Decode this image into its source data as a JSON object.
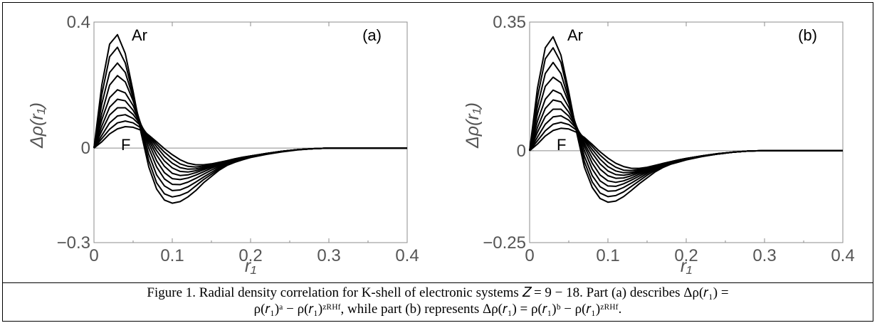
{
  "caption": {
    "line1": "Figure 1. Radial density correlation for K-shell of electronic systems 𝑍 = 9 − 18. Part (a) describes Δρ(𝑟₁) =",
    "line2": "ρ(𝑟₁)ᵃ − ρ(𝑟₁)ᶻᴿᴴᶠ, while part (b) represents Δρ(𝑟₁) = ρ(𝑟₁)ᵇ − ρ(𝑟₁)ᶻᴿᴴᶠ."
  },
  "chart_data": [
    {
      "type": "line",
      "panel_label": "(a)",
      "xlabel": "r₁",
      "ylabel": "Δρ(r₁)",
      "xlim": [
        0,
        0.4
      ],
      "ylim": [
        -0.3,
        0.4
      ],
      "xticks": [
        "0",
        "0.1",
        "0.2",
        "0.3",
        "0.4"
      ],
      "yticks": [
        "−0.3",
        "0",
        "0.4"
      ],
      "grid": false,
      "annotations": [
        "Ar",
        "F"
      ],
      "x": [
        0,
        0.01,
        0.02,
        0.03,
        0.04,
        0.05,
        0.06,
        0.07,
        0.08,
        0.09,
        0.1,
        0.11,
        0.12,
        0.13,
        0.14,
        0.15,
        0.16,
        0.17,
        0.18,
        0.19,
        0.2,
        0.22,
        0.24,
        0.26,
        0.28,
        0.3,
        0.32,
        0.34,
        0.36,
        0.38,
        0.4
      ],
      "series": [
        {
          "values": [
            0,
            0.2,
            0.33,
            0.36,
            0.3,
            0.18,
            0.05,
            -0.06,
            -0.13,
            -0.165,
            -0.175,
            -0.17,
            -0.155,
            -0.135,
            -0.11,
            -0.09,
            -0.07,
            -0.055,
            -0.045,
            -0.037,
            -0.03,
            -0.02,
            -0.012,
            -0.006,
            -0.002,
            0,
            0,
            0,
            0,
            0,
            0
          ]
        },
        {
          "values": [
            0,
            0.17,
            0.29,
            0.32,
            0.27,
            0.17,
            0.06,
            -0.04,
            -0.11,
            -0.145,
            -0.155,
            -0.15,
            -0.14,
            -0.12,
            -0.1,
            -0.083,
            -0.066,
            -0.053,
            -0.043,
            -0.035,
            -0.029,
            -0.019,
            -0.011,
            -0.005,
            -0.002,
            0,
            0,
            0,
            0,
            0,
            0
          ]
        },
        {
          "values": [
            0,
            0.14,
            0.24,
            0.27,
            0.24,
            0.16,
            0.07,
            -0.02,
            -0.085,
            -0.12,
            -0.135,
            -0.133,
            -0.123,
            -0.108,
            -0.092,
            -0.077,
            -0.062,
            -0.05,
            -0.041,
            -0.034,
            -0.028,
            -0.018,
            -0.011,
            -0.005,
            -0.002,
            0,
            0,
            0,
            0,
            0,
            0
          ]
        },
        {
          "values": [
            0,
            0.11,
            0.2,
            0.23,
            0.21,
            0.15,
            0.075,
            0,
            -0.06,
            -0.098,
            -0.115,
            -0.116,
            -0.108,
            -0.096,
            -0.083,
            -0.07,
            -0.058,
            -0.047,
            -0.039,
            -0.033,
            -0.027,
            -0.018,
            -0.01,
            -0.005,
            -0.002,
            0,
            0,
            0,
            0,
            0,
            0
          ]
        },
        {
          "values": [
            0,
            0.09,
            0.16,
            0.185,
            0.175,
            0.135,
            0.075,
            0.015,
            -0.04,
            -0.078,
            -0.097,
            -0.1,
            -0.095,
            -0.086,
            -0.075,
            -0.064,
            -0.054,
            -0.045,
            -0.037,
            -0.032,
            -0.027,
            -0.017,
            -0.01,
            -0.005,
            -0.002,
            0,
            0,
            0,
            0,
            0,
            0
          ]
        },
        {
          "values": [
            0,
            0.07,
            0.13,
            0.155,
            0.15,
            0.12,
            0.075,
            0.025,
            -0.022,
            -0.058,
            -0.08,
            -0.087,
            -0.085,
            -0.078,
            -0.069,
            -0.06,
            -0.051,
            -0.043,
            -0.036,
            -0.031,
            -0.026,
            -0.017,
            -0.01,
            -0.005,
            -0.002,
            0,
            0,
            0,
            0,
            0,
            0
          ]
        },
        {
          "values": [
            0,
            0.055,
            0.105,
            0.128,
            0.128,
            0.107,
            0.073,
            0.032,
            -0.008,
            -0.041,
            -0.063,
            -0.074,
            -0.076,
            -0.072,
            -0.065,
            -0.057,
            -0.049,
            -0.042,
            -0.035,
            -0.03,
            -0.026,
            -0.017,
            -0.01,
            -0.005,
            -0.002,
            0,
            0,
            0,
            0,
            0,
            0
          ]
        },
        {
          "values": [
            0,
            0.04,
            0.08,
            0.102,
            0.106,
            0.094,
            0.07,
            0.037,
            0.004,
            -0.026,
            -0.048,
            -0.062,
            -0.067,
            -0.066,
            -0.061,
            -0.054,
            -0.047,
            -0.041,
            -0.035,
            -0.03,
            -0.025,
            -0.017,
            -0.01,
            -0.005,
            -0.002,
            0,
            0,
            0,
            0,
            0,
            0
          ]
        },
        {
          "values": [
            0,
            0.03,
            0.06,
            0.08,
            0.086,
            0.08,
            0.064,
            0.04,
            0.013,
            -0.013,
            -0.034,
            -0.05,
            -0.058,
            -0.06,
            -0.057,
            -0.052,
            -0.046,
            -0.04,
            -0.034,
            -0.029,
            -0.025,
            -0.017,
            -0.01,
            -0.005,
            -0.002,
            0,
            0,
            0,
            0,
            0,
            0
          ]
        },
        {
          "values": [
            0,
            0.02,
            0.045,
            0.061,
            0.068,
            0.066,
            0.057,
            0.041,
            0.02,
            -0.002,
            -0.021,
            -0.037,
            -0.048,
            -0.053,
            -0.053,
            -0.05,
            -0.045,
            -0.04,
            -0.034,
            -0.029,
            -0.025,
            -0.017,
            -0.01,
            -0.005,
            -0.002,
            0,
            0,
            0,
            0,
            0,
            0
          ]
        }
      ]
    },
    {
      "type": "line",
      "panel_label": "(b)",
      "xlabel": "r₁",
      "ylabel": "Δρ(r₁)",
      "xlim": [
        0,
        0.4
      ],
      "ylim": [
        -0.25,
        0.35
      ],
      "xticks": [
        "0",
        "0.1",
        "0.2",
        "0.3",
        "0.4"
      ],
      "yticks": [
        "−0.25",
        "0",
        "0.35"
      ],
      "grid": false,
      "annotations": [
        "Ar",
        "F"
      ],
      "x": [
        0,
        0.01,
        0.02,
        0.03,
        0.04,
        0.05,
        0.06,
        0.07,
        0.08,
        0.09,
        0.1,
        0.11,
        0.12,
        0.13,
        0.14,
        0.15,
        0.16,
        0.17,
        0.18,
        0.19,
        0.2,
        0.22,
        0.24,
        0.26,
        0.28,
        0.3,
        0.32,
        0.34,
        0.36,
        0.38,
        0.4
      ],
      "series": [
        {
          "values": [
            0,
            0.17,
            0.28,
            0.31,
            0.26,
            0.16,
            0.05,
            -0.045,
            -0.1,
            -0.13,
            -0.14,
            -0.137,
            -0.125,
            -0.108,
            -0.09,
            -0.074,
            -0.058,
            -0.046,
            -0.037,
            -0.031,
            -0.025,
            -0.016,
            -0.009,
            -0.004,
            -0.001,
            0,
            0,
            0,
            0,
            0,
            0
          ]
        },
        {
          "values": [
            0,
            0.145,
            0.25,
            0.28,
            0.24,
            0.15,
            0.055,
            -0.03,
            -0.085,
            -0.115,
            -0.125,
            -0.122,
            -0.112,
            -0.097,
            -0.082,
            -0.067,
            -0.054,
            -0.043,
            -0.035,
            -0.029,
            -0.024,
            -0.015,
            -0.009,
            -0.004,
            -0.001,
            0,
            0,
            0,
            0,
            0,
            0
          ]
        },
        {
          "values": [
            0,
            0.12,
            0.21,
            0.24,
            0.21,
            0.14,
            0.06,
            -0.015,
            -0.068,
            -0.098,
            -0.11,
            -0.109,
            -0.1,
            -0.088,
            -0.075,
            -0.062,
            -0.05,
            -0.041,
            -0.034,
            -0.028,
            -0.023,
            -0.015,
            -0.009,
            -0.004,
            -0.001,
            0,
            0,
            0,
            0,
            0,
            0
          ]
        },
        {
          "values": [
            0,
            0.1,
            0.175,
            0.2,
            0.185,
            0.13,
            0.065,
            0,
            -0.05,
            -0.082,
            -0.096,
            -0.097,
            -0.09,
            -0.08,
            -0.069,
            -0.058,
            -0.048,
            -0.039,
            -0.032,
            -0.027,
            -0.023,
            -0.015,
            -0.009,
            -0.004,
            -0.001,
            0,
            0,
            0,
            0,
            0,
            0
          ]
        },
        {
          "values": [
            0,
            0.08,
            0.14,
            0.165,
            0.155,
            0.118,
            0.066,
            0.012,
            -0.034,
            -0.066,
            -0.082,
            -0.086,
            -0.082,
            -0.074,
            -0.064,
            -0.055,
            -0.046,
            -0.038,
            -0.031,
            -0.026,
            -0.022,
            -0.015,
            -0.009,
            -0.004,
            -0.001,
            0,
            0,
            0,
            0,
            0,
            0
          ]
        },
        {
          "values": [
            0,
            0.063,
            0.115,
            0.138,
            0.133,
            0.105,
            0.065,
            0.02,
            -0.02,
            -0.05,
            -0.068,
            -0.075,
            -0.074,
            -0.068,
            -0.06,
            -0.052,
            -0.044,
            -0.036,
            -0.03,
            -0.026,
            -0.022,
            -0.015,
            -0.009,
            -0.004,
            -0.001,
            0,
            0,
            0,
            0,
            0,
            0
          ]
        },
        {
          "values": [
            0,
            0.05,
            0.093,
            0.113,
            0.113,
            0.094,
            0.063,
            0.027,
            -0.007,
            -0.036,
            -0.055,
            -0.065,
            -0.067,
            -0.063,
            -0.057,
            -0.05,
            -0.043,
            -0.036,
            -0.03,
            -0.025,
            -0.021,
            -0.014,
            -0.008,
            -0.004,
            -0.001,
            0,
            0,
            0,
            0,
            0,
            0
          ]
        },
        {
          "values": [
            0,
            0.037,
            0.072,
            0.092,
            0.095,
            0.083,
            0.06,
            0.031,
            0.003,
            -0.023,
            -0.043,
            -0.055,
            -0.06,
            -0.059,
            -0.054,
            -0.048,
            -0.042,
            -0.035,
            -0.03,
            -0.025,
            -0.021,
            -0.014,
            -0.008,
            -0.004,
            -0.001,
            0,
            0,
            0,
            0,
            0,
            0
          ]
        },
        {
          "values": [
            0,
            0.027,
            0.054,
            0.072,
            0.077,
            0.071,
            0.056,
            0.034,
            0.011,
            -0.012,
            -0.031,
            -0.045,
            -0.053,
            -0.054,
            -0.051,
            -0.047,
            -0.041,
            -0.035,
            -0.03,
            -0.025,
            -0.021,
            -0.014,
            -0.008,
            -0.004,
            -0.001,
            0,
            0,
            0,
            0,
            0,
            0
          ]
        },
        {
          "values": [
            0,
            0.018,
            0.04,
            0.055,
            0.061,
            0.059,
            0.05,
            0.036,
            0.017,
            -0.003,
            -0.02,
            -0.034,
            -0.043,
            -0.048,
            -0.048,
            -0.045,
            -0.04,
            -0.035,
            -0.03,
            -0.025,
            -0.021,
            -0.014,
            -0.008,
            -0.004,
            -0.001,
            0,
            0,
            0,
            0,
            0,
            0
          ]
        }
      ]
    }
  ]
}
